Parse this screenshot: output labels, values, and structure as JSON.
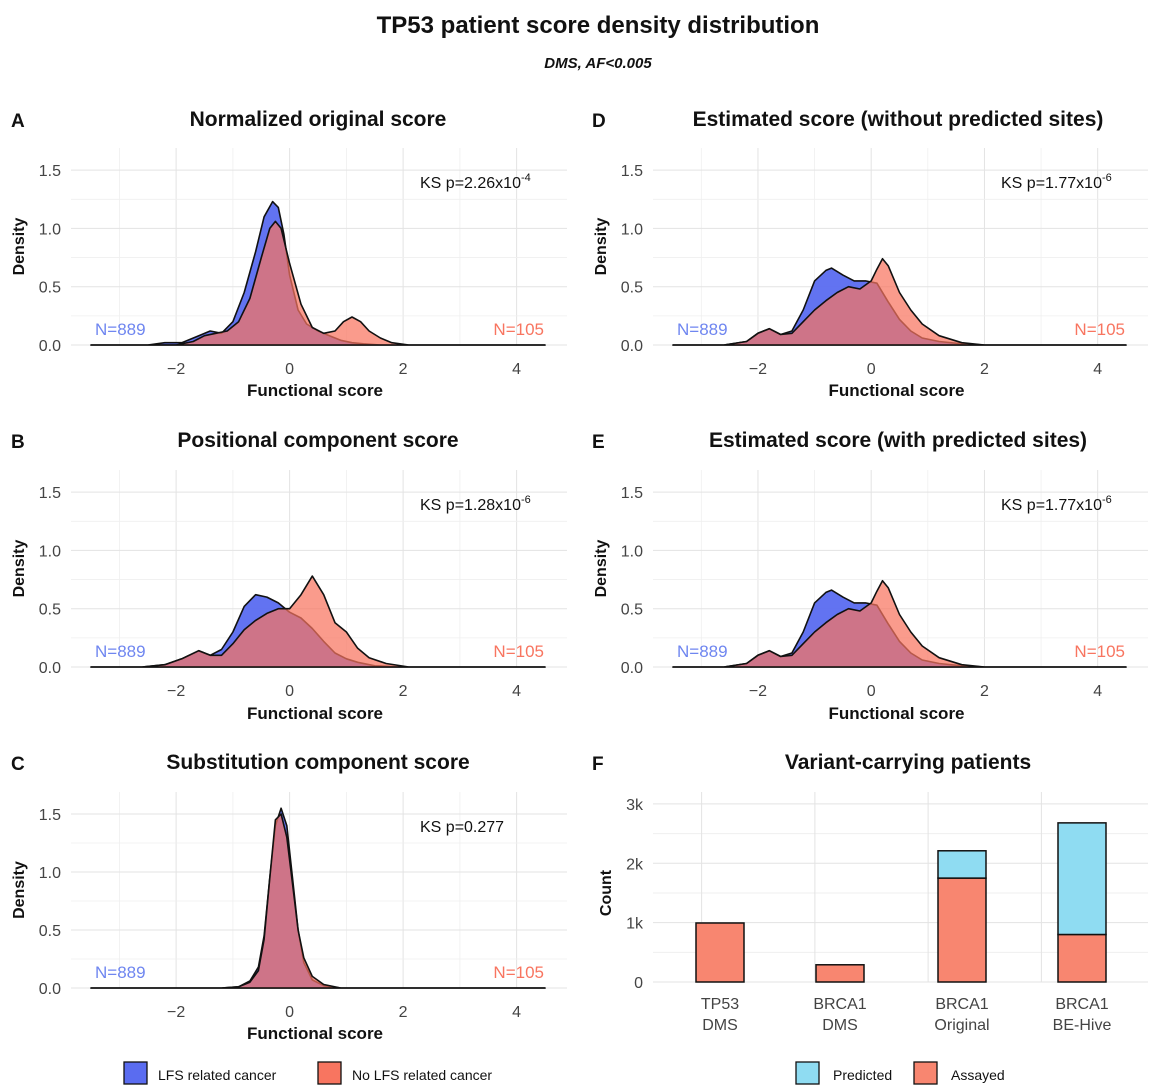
{
  "figure": {
    "title": "TP53 patient score density distribution",
    "subtitle": "DMS, AF<0.005",
    "colors": {
      "lfs": "#5a6cf0",
      "nolfs": "#f87560",
      "overlap": "#b23a7a",
      "predicted": "#8fdcf2",
      "assayed": "#f88670",
      "n_lfs_text": "#6f86f0",
      "n_nolfs_text": "#f87560"
    },
    "density_legend": {
      "lfs_label": "LFS related cancer",
      "nolfs_label": "No LFS related cancer"
    },
    "bar_legend": {
      "predicted_label": "Predicted",
      "assayed_label": "Assayed"
    }
  },
  "chart_data": [
    {
      "panel": "A",
      "type": "area",
      "title": "Normalized original score",
      "xlabel": "Functional score",
      "ylabel": "Density",
      "xlim": [
        -3.5,
        4.5
      ],
      "ylim": [
        0,
        1.5
      ],
      "xticks": [
        -2,
        0,
        2,
        4
      ],
      "yticks": [
        "0.0",
        "0.5",
        "1.0",
        "1.5"
      ],
      "annotation": {
        "prefix": "KS p=2.26x10",
        "exp": "-4"
      },
      "n_lfs": "N=889",
      "n_nolfs": "N=105",
      "series": [
        {
          "name": "LFS related cancer",
          "x": [
            -3.5,
            -2.5,
            -2.2,
            -1.9,
            -1.6,
            -1.4,
            -1.2,
            -1.0,
            -0.8,
            -0.6,
            -0.45,
            -0.3,
            -0.2,
            -0.1,
            0.0,
            0.15,
            0.3,
            0.5,
            0.7,
            0.9,
            1.1,
            1.3,
            1.6,
            2.0,
            3.0,
            4.5
          ],
          "y": [
            0,
            0,
            0.02,
            0.02,
            0.08,
            0.12,
            0.1,
            0.2,
            0.45,
            0.8,
            1.1,
            1.23,
            1.18,
            0.95,
            0.6,
            0.3,
            0.18,
            0.12,
            0.08,
            0.04,
            0.02,
            0.01,
            0,
            0,
            0,
            0
          ]
        },
        {
          "name": "No LFS related cancer",
          "x": [
            -3.5,
            -2.5,
            -2.0,
            -1.7,
            -1.5,
            -1.3,
            -1.1,
            -0.9,
            -0.7,
            -0.5,
            -0.35,
            -0.25,
            -0.15,
            0.0,
            0.2,
            0.4,
            0.6,
            0.8,
            0.95,
            1.1,
            1.25,
            1.4,
            1.6,
            1.8,
            2.1,
            3.0,
            4.5
          ],
          "y": [
            0,
            0,
            0,
            0.03,
            0.08,
            0.1,
            0.12,
            0.2,
            0.4,
            0.75,
            1.0,
            1.06,
            1.0,
            0.7,
            0.35,
            0.15,
            0.1,
            0.12,
            0.2,
            0.24,
            0.2,
            0.12,
            0.06,
            0.02,
            0,
            0,
            0
          ]
        }
      ]
    },
    {
      "panel": "B",
      "type": "area",
      "title": "Positional component score",
      "xlabel": "Functional score",
      "ylabel": "Density",
      "xlim": [
        -3.5,
        4.5
      ],
      "ylim": [
        0,
        1.5
      ],
      "xticks": [
        -2,
        0,
        2,
        4
      ],
      "yticks": [
        "0.0",
        "0.5",
        "1.0",
        "1.5"
      ],
      "annotation": {
        "prefix": "KS p=1.28x10",
        "exp": "-6"
      },
      "n_lfs": "N=889",
      "n_nolfs": "N=105",
      "series": [
        {
          "name": "LFS related cancer",
          "x": [
            -3.5,
            -2.6,
            -2.2,
            -1.9,
            -1.6,
            -1.4,
            -1.2,
            -1.0,
            -0.8,
            -0.6,
            -0.4,
            -0.2,
            0.0,
            0.2,
            0.4,
            0.6,
            0.8,
            1.0,
            1.2,
            1.5,
            2.0,
            3.0,
            4.5
          ],
          "y": [
            0,
            0,
            0.02,
            0.07,
            0.14,
            0.1,
            0.15,
            0.3,
            0.52,
            0.62,
            0.6,
            0.55,
            0.47,
            0.42,
            0.33,
            0.22,
            0.12,
            0.07,
            0.04,
            0.01,
            0,
            0,
            0
          ]
        },
        {
          "name": "No LFS related cancer",
          "x": [
            -3.5,
            -2.6,
            -2.2,
            -1.9,
            -1.6,
            -1.4,
            -1.2,
            -1.0,
            -0.8,
            -0.6,
            -0.4,
            -0.2,
            0.0,
            0.2,
            0.4,
            0.6,
            0.8,
            1.0,
            1.2,
            1.4,
            1.7,
            2.1,
            3.0,
            4.5
          ],
          "y": [
            0,
            0,
            0.02,
            0.07,
            0.14,
            0.1,
            0.1,
            0.2,
            0.32,
            0.4,
            0.46,
            0.5,
            0.5,
            0.62,
            0.78,
            0.62,
            0.38,
            0.3,
            0.16,
            0.08,
            0.03,
            0,
            0,
            0
          ]
        }
      ]
    },
    {
      "panel": "C",
      "type": "area",
      "title": "Substitution component score",
      "xlabel": "Functional score",
      "ylabel": "Density",
      "xlim": [
        -3.5,
        4.5
      ],
      "ylim": [
        0,
        1.5
      ],
      "xticks": [
        -2,
        0,
        2,
        4
      ],
      "yticks": [
        "0.0",
        "0.5",
        "1.0",
        "1.5"
      ],
      "annotation": {
        "prefix": "KS p=0.277",
        "exp": ""
      },
      "n_lfs": "N=889",
      "n_nolfs": "N=105",
      "series": [
        {
          "name": "LFS related cancer",
          "x": [
            -3.5,
            -1.2,
            -0.9,
            -0.7,
            -0.55,
            -0.45,
            -0.35,
            -0.25,
            -0.15,
            -0.05,
            0.05,
            0.15,
            0.25,
            0.4,
            0.6,
            0.9,
            4.5
          ],
          "y": [
            0,
            0,
            0.01,
            0.06,
            0.18,
            0.45,
            0.95,
            1.4,
            1.55,
            1.4,
            0.95,
            0.5,
            0.22,
            0.07,
            0.02,
            0,
            0
          ]
        },
        {
          "name": "No LFS related cancer",
          "x": [
            -3.5,
            -1.2,
            -0.9,
            -0.7,
            -0.55,
            -0.45,
            -0.35,
            -0.25,
            -0.15,
            -0.05,
            0.05,
            0.15,
            0.25,
            0.4,
            0.6,
            0.9,
            4.5
          ],
          "y": [
            0,
            0,
            0.01,
            0.05,
            0.15,
            0.42,
            0.95,
            1.45,
            1.5,
            1.3,
            0.9,
            0.5,
            0.26,
            0.1,
            0.03,
            0,
            0
          ]
        }
      ]
    },
    {
      "panel": "D",
      "type": "area",
      "title": "Estimated score (without predicted sites)",
      "xlabel": "Functional score",
      "ylabel": "Density",
      "xlim": [
        -3.5,
        4.5
      ],
      "ylim": [
        0,
        1.5
      ],
      "xticks": [
        -2,
        0,
        2,
        4
      ],
      "yticks": [
        "0.0",
        "0.5",
        "1.0",
        "1.5"
      ],
      "annotation": {
        "prefix": "KS p=1.77x10",
        "exp": "-6"
      },
      "n_lfs": "N=889",
      "n_nolfs": "N=105",
      "series": [
        {
          "name": "LFS related cancer",
          "x": [
            -3.5,
            -2.6,
            -2.2,
            -2.0,
            -1.8,
            -1.6,
            -1.4,
            -1.2,
            -1.0,
            -0.8,
            -0.7,
            -0.5,
            -0.3,
            -0.1,
            0.1,
            0.3,
            0.5,
            0.7,
            0.9,
            1.2,
            1.6,
            2.0,
            3.0,
            4.5
          ],
          "y": [
            0,
            0,
            0.03,
            0.1,
            0.14,
            0.09,
            0.12,
            0.3,
            0.55,
            0.64,
            0.66,
            0.6,
            0.55,
            0.55,
            0.53,
            0.37,
            0.22,
            0.12,
            0.06,
            0.03,
            0.01,
            0,
            0,
            0
          ]
        },
        {
          "name": "No LFS related cancer",
          "x": [
            -3.5,
            -2.6,
            -2.2,
            -2.0,
            -1.8,
            -1.6,
            -1.4,
            -1.2,
            -1.0,
            -0.8,
            -0.6,
            -0.4,
            -0.2,
            0.0,
            0.1,
            0.2,
            0.3,
            0.5,
            0.7,
            0.9,
            1.2,
            1.6,
            2.0,
            3.0,
            4.5
          ],
          "y": [
            0,
            0,
            0.03,
            0.1,
            0.14,
            0.09,
            0.1,
            0.2,
            0.3,
            0.38,
            0.45,
            0.5,
            0.48,
            0.55,
            0.65,
            0.74,
            0.68,
            0.45,
            0.3,
            0.18,
            0.08,
            0.02,
            0,
            0,
            0
          ]
        }
      ]
    },
    {
      "panel": "E",
      "type": "area",
      "title": "Estimated score (with predicted sites)",
      "xlabel": "Functional score",
      "ylabel": "Density",
      "xlim": [
        -3.5,
        4.5
      ],
      "ylim": [
        0,
        1.5
      ],
      "xticks": [
        -2,
        0,
        2,
        4
      ],
      "yticks": [
        "0.0",
        "0.5",
        "1.0",
        "1.5"
      ],
      "annotation": {
        "prefix": "KS p=1.77x10",
        "exp": "-6"
      },
      "n_lfs": "N=889",
      "n_nolfs": "N=105",
      "series": [
        {
          "name": "LFS related cancer",
          "x": [
            -3.5,
            -2.6,
            -2.2,
            -2.0,
            -1.8,
            -1.6,
            -1.4,
            -1.2,
            -1.0,
            -0.8,
            -0.7,
            -0.5,
            -0.3,
            -0.1,
            0.1,
            0.3,
            0.5,
            0.7,
            0.9,
            1.2,
            1.6,
            2.0,
            3.0,
            4.5
          ],
          "y": [
            0,
            0,
            0.03,
            0.1,
            0.14,
            0.09,
            0.12,
            0.3,
            0.55,
            0.64,
            0.66,
            0.6,
            0.55,
            0.55,
            0.53,
            0.37,
            0.22,
            0.12,
            0.06,
            0.03,
            0.01,
            0,
            0,
            0
          ]
        },
        {
          "name": "No LFS related cancer",
          "x": [
            -3.5,
            -2.6,
            -2.2,
            -2.0,
            -1.8,
            -1.6,
            -1.4,
            -1.2,
            -1.0,
            -0.8,
            -0.6,
            -0.4,
            -0.2,
            0.0,
            0.1,
            0.2,
            0.3,
            0.5,
            0.7,
            0.9,
            1.2,
            1.6,
            2.0,
            3.0,
            4.5
          ],
          "y": [
            0,
            0,
            0.03,
            0.1,
            0.14,
            0.09,
            0.1,
            0.2,
            0.3,
            0.38,
            0.45,
            0.5,
            0.48,
            0.55,
            0.65,
            0.74,
            0.68,
            0.45,
            0.3,
            0.18,
            0.08,
            0.02,
            0,
            0,
            0
          ]
        }
      ]
    },
    {
      "panel": "F",
      "type": "bar",
      "title": "Variant-carrying patients",
      "xlabel": "",
      "ylabel": "Count",
      "ylim": [
        0,
        3200
      ],
      "yticks": [
        {
          "v": 0,
          "label": "0"
        },
        {
          "v": 1000,
          "label": "1k"
        },
        {
          "v": 2000,
          "label": "2k"
        },
        {
          "v": 3000,
          "label": "3k"
        }
      ],
      "categories": [
        [
          "TP53",
          "DMS"
        ],
        [
          "BRCA1",
          "DMS"
        ],
        [
          "BRCA1",
          "Original"
        ],
        [
          "BRCA1",
          "BE-Hive"
        ]
      ],
      "series": [
        {
          "name": "Assayed",
          "values": [
            994,
            290,
            1750,
            800
          ]
        },
        {
          "name": "Predicted",
          "values": [
            0,
            0,
            460,
            1880
          ]
        }
      ]
    }
  ]
}
